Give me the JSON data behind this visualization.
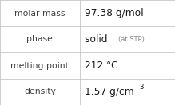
{
  "rows": [
    {
      "label": "molar mass",
      "value": "97.38 g/mol",
      "note": null,
      "superscript": null
    },
    {
      "label": "phase",
      "value": "solid",
      "note": "(at STP)",
      "superscript": null
    },
    {
      "label": "melting point",
      "value": "212 °C",
      "note": null,
      "superscript": null
    },
    {
      "label": "density",
      "value": "1.57 g/cm",
      "note": null,
      "superscript": "3"
    }
  ],
  "bg_color": "#ffffff",
  "border_color": "#bbbbbb",
  "label_color": "#404040",
  "value_color": "#1a1a1a",
  "note_color": "#888888",
  "divider_color": "#bbbbbb",
  "col_split": 0.455,
  "label_fontsize": 7.8,
  "value_fontsize": 8.8,
  "note_fontsize": 6.0,
  "sup_fontsize": 6.2
}
